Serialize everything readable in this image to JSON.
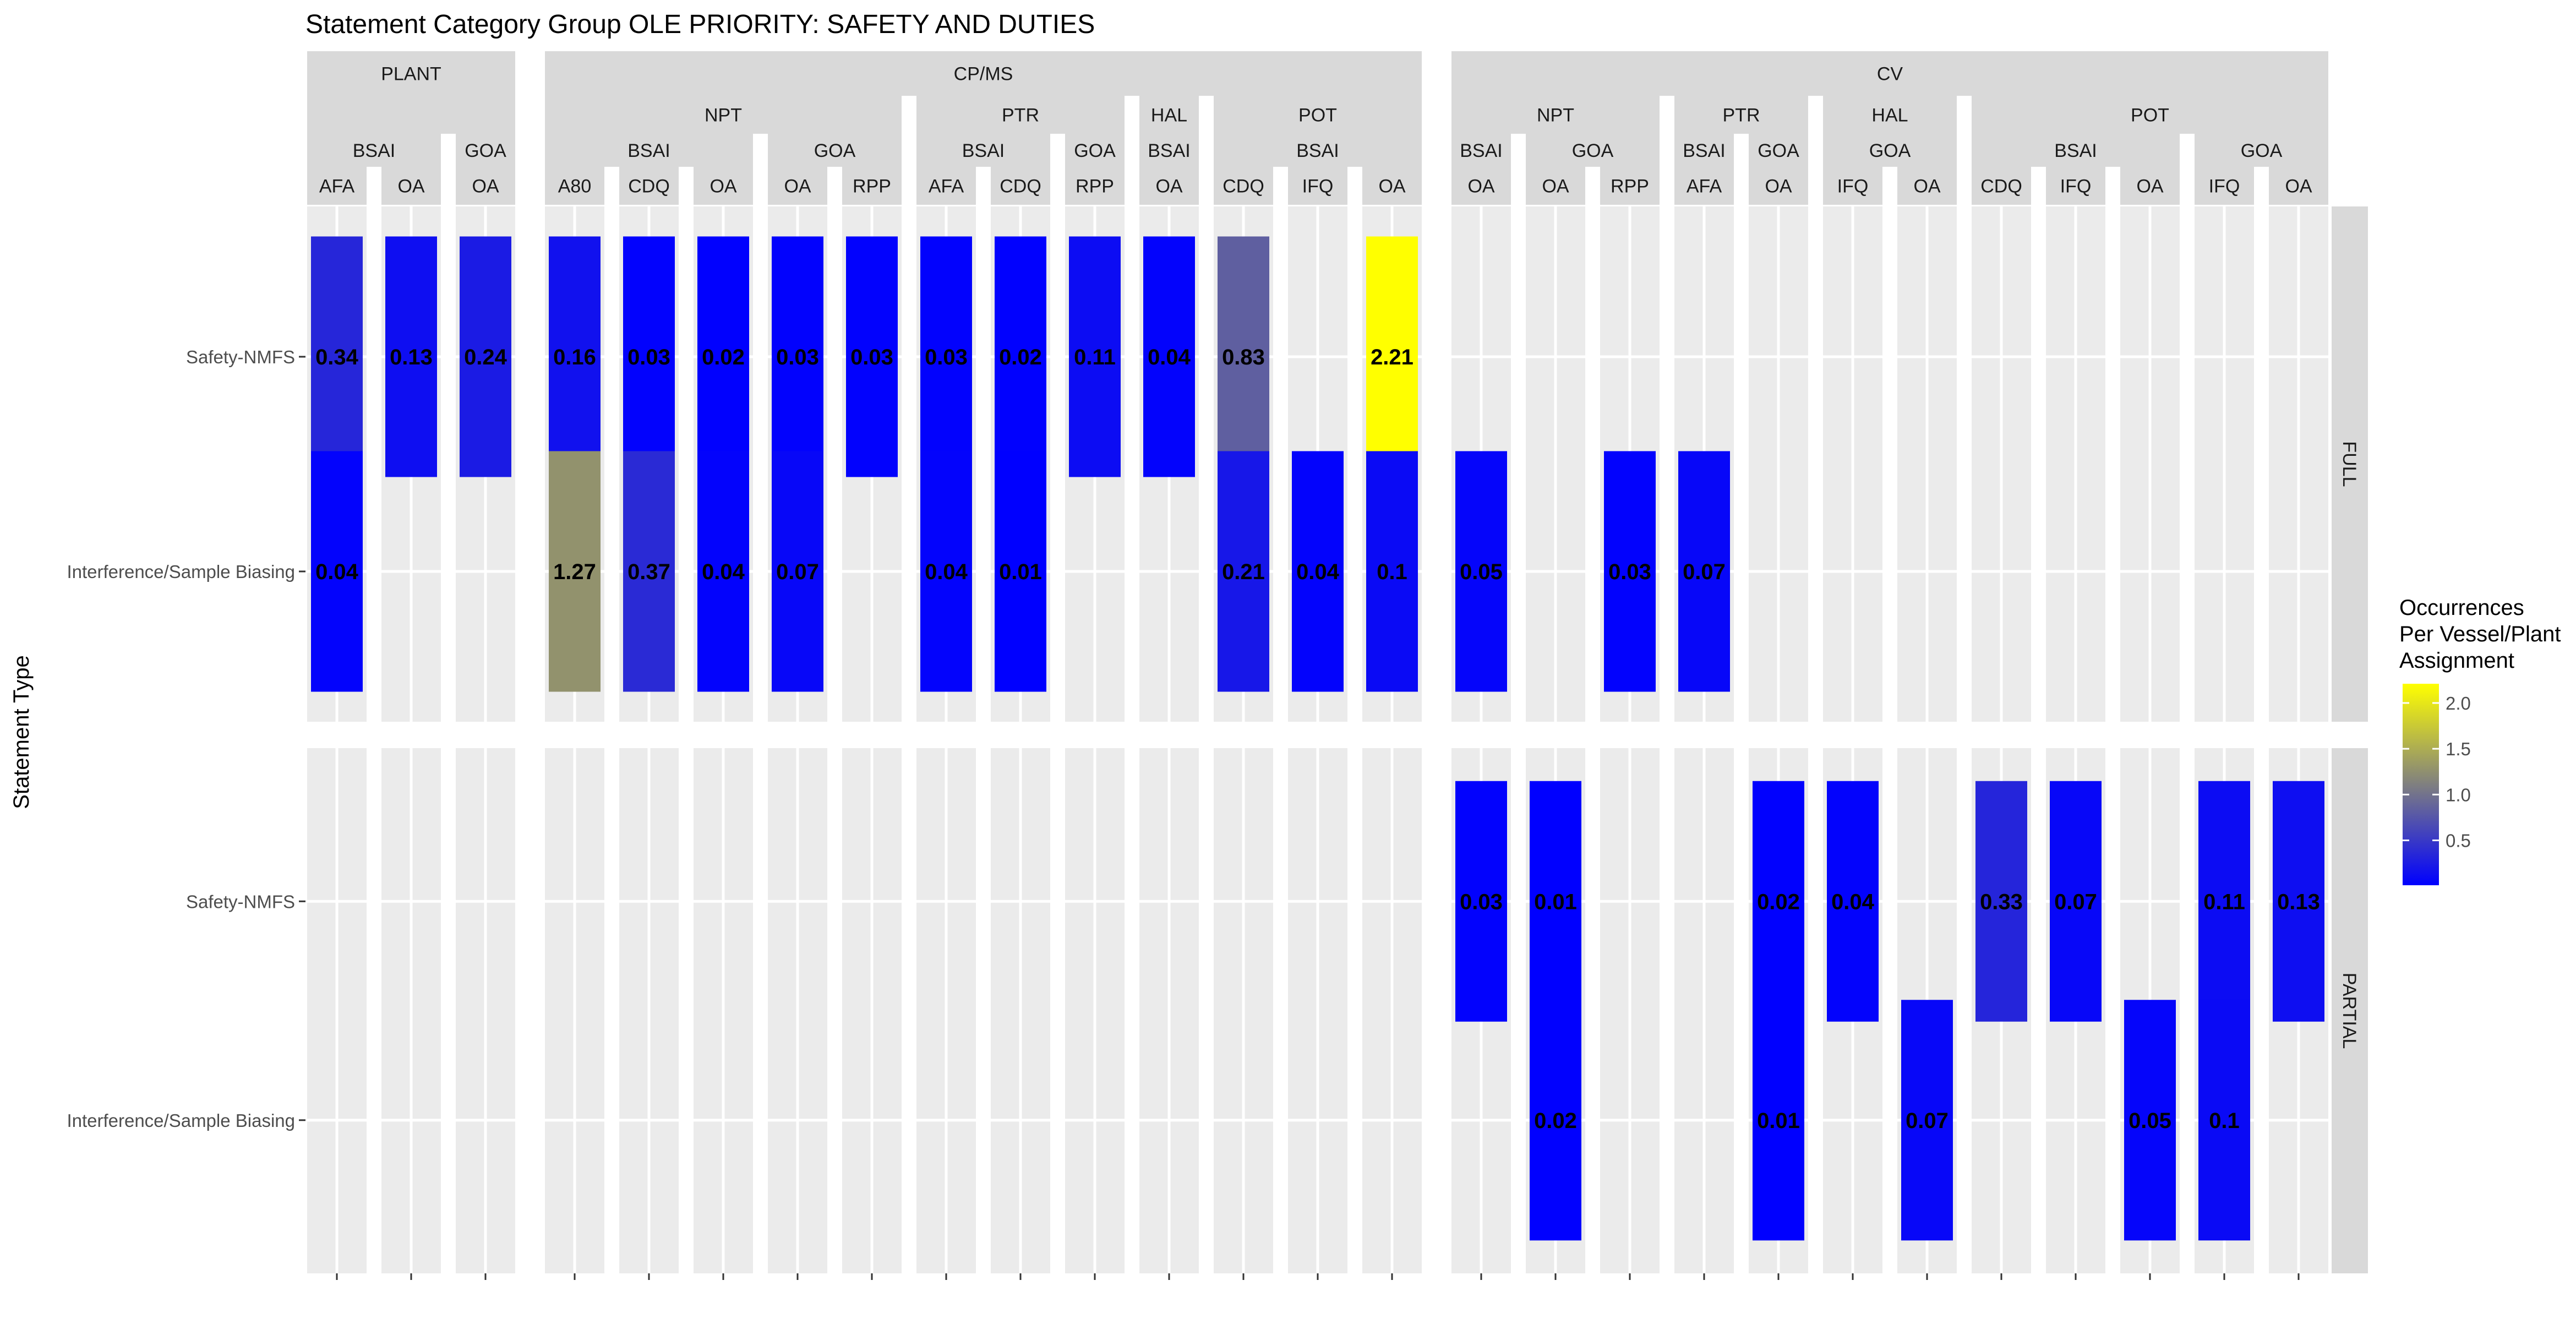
{
  "chart_data": {
    "type": "heatmap",
    "title": "Statement Category Group OLE PRIORITY: SAFETY AND DUTIES",
    "ylabel": "Statement Type",
    "xlabel": "",
    "row_facets": [
      "FULL",
      "PARTIAL"
    ],
    "y_categories": [
      "Safety-NMFS",
      "Interference/Sample Biasing"
    ],
    "columns": [
      {
        "l1": "PLANT",
        "l2": "",
        "l3": "BSAI",
        "l4": "AFA"
      },
      {
        "l1": "PLANT",
        "l2": "",
        "l3": "BSAI",
        "l4": "OA"
      },
      {
        "l1": "PLANT",
        "l2": "",
        "l3": "GOA",
        "l4": "OA"
      },
      {
        "l1": "CP/MS",
        "l2": "NPT",
        "l3": "BSAI",
        "l4": "A80"
      },
      {
        "l1": "CP/MS",
        "l2": "NPT",
        "l3": "BSAI",
        "l4": "CDQ"
      },
      {
        "l1": "CP/MS",
        "l2": "NPT",
        "l3": "BSAI",
        "l4": "OA"
      },
      {
        "l1": "CP/MS",
        "l2": "NPT",
        "l3": "GOA",
        "l4": "OA"
      },
      {
        "l1": "CP/MS",
        "l2": "NPT",
        "l3": "GOA",
        "l4": "RPP"
      },
      {
        "l1": "CP/MS",
        "l2": "PTR",
        "l3": "BSAI",
        "l4": "AFA"
      },
      {
        "l1": "CP/MS",
        "l2": "PTR",
        "l3": "BSAI",
        "l4": "CDQ"
      },
      {
        "l1": "CP/MS",
        "l2": "PTR",
        "l3": "GOA",
        "l4": "RPP"
      },
      {
        "l1": "CP/MS",
        "l2": "HAL",
        "l3": "BSAI",
        "l4": "OA"
      },
      {
        "l1": "CP/MS",
        "l2": "POT",
        "l3": "BSAI",
        "l4": "CDQ"
      },
      {
        "l1": "CP/MS",
        "l2": "POT",
        "l3": "BSAI",
        "l4": "IFQ"
      },
      {
        "l1": "CP/MS",
        "l2": "POT",
        "l3": "BSAI",
        "l4": "OA"
      },
      {
        "l1": "CV",
        "l2": "NPT",
        "l3": "BSAI",
        "l4": "OA"
      },
      {
        "l1": "CV",
        "l2": "NPT",
        "l3": "GOA",
        "l4": "OA"
      },
      {
        "l1": "CV",
        "l2": "NPT",
        "l3": "GOA",
        "l4": "RPP"
      },
      {
        "l1": "CV",
        "l2": "PTR",
        "l3": "BSAI",
        "l4": "AFA"
      },
      {
        "l1": "CV",
        "l2": "PTR",
        "l3": "GOA",
        "l4": "OA"
      },
      {
        "l1": "CV",
        "l2": "HAL",
        "l3": "GOA",
        "l4": "IFQ"
      },
      {
        "l1": "CV",
        "l2": "HAL",
        "l3": "GOA",
        "l4": "OA"
      },
      {
        "l1": "CV",
        "l2": "POT",
        "l3": "BSAI",
        "l4": "CDQ"
      },
      {
        "l1": "CV",
        "l2": "POT",
        "l3": "BSAI",
        "l4": "IFQ"
      },
      {
        "l1": "CV",
        "l2": "POT",
        "l3": "BSAI",
        "l4": "OA"
      },
      {
        "l1": "CV",
        "l2": "POT",
        "l3": "GOA",
        "l4": "IFQ"
      },
      {
        "l1": "CV",
        "l2": "POT",
        "l3": "GOA",
        "l4": "OA"
      }
    ],
    "cells": [
      {
        "facet": "FULL",
        "y": "Safety-NMFS",
        "col": 0,
        "value": 0.34
      },
      {
        "facet": "FULL",
        "y": "Safety-NMFS",
        "col": 1,
        "value": 0.13
      },
      {
        "facet": "FULL",
        "y": "Safety-NMFS",
        "col": 2,
        "value": 0.24
      },
      {
        "facet": "FULL",
        "y": "Safety-NMFS",
        "col": 3,
        "value": 0.16
      },
      {
        "facet": "FULL",
        "y": "Safety-NMFS",
        "col": 4,
        "value": 0.03
      },
      {
        "facet": "FULL",
        "y": "Safety-NMFS",
        "col": 5,
        "value": 0.02
      },
      {
        "facet": "FULL",
        "y": "Safety-NMFS",
        "col": 6,
        "value": 0.03
      },
      {
        "facet": "FULL",
        "y": "Safety-NMFS",
        "col": 7,
        "value": 0.03
      },
      {
        "facet": "FULL",
        "y": "Safety-NMFS",
        "col": 8,
        "value": 0.03
      },
      {
        "facet": "FULL",
        "y": "Safety-NMFS",
        "col": 9,
        "value": 0.02
      },
      {
        "facet": "FULL",
        "y": "Safety-NMFS",
        "col": 10,
        "value": 0.11
      },
      {
        "facet": "FULL",
        "y": "Safety-NMFS",
        "col": 11,
        "value": 0.04
      },
      {
        "facet": "FULL",
        "y": "Safety-NMFS",
        "col": 12,
        "value": 0.83
      },
      {
        "facet": "FULL",
        "y": "Safety-NMFS",
        "col": 14,
        "value": 2.21
      },
      {
        "facet": "FULL",
        "y": "Interference/Sample Biasing",
        "col": 0,
        "value": 0.04
      },
      {
        "facet": "FULL",
        "y": "Interference/Sample Biasing",
        "col": 3,
        "value": 1.27
      },
      {
        "facet": "FULL",
        "y": "Interference/Sample Biasing",
        "col": 4,
        "value": 0.37
      },
      {
        "facet": "FULL",
        "y": "Interference/Sample Biasing",
        "col": 5,
        "value": 0.04
      },
      {
        "facet": "FULL",
        "y": "Interference/Sample Biasing",
        "col": 6,
        "value": 0.07
      },
      {
        "facet": "FULL",
        "y": "Interference/Sample Biasing",
        "col": 8,
        "value": 0.04
      },
      {
        "facet": "FULL",
        "y": "Interference/Sample Biasing",
        "col": 9,
        "value": 0.01
      },
      {
        "facet": "FULL",
        "y": "Interference/Sample Biasing",
        "col": 12,
        "value": 0.21
      },
      {
        "facet": "FULL",
        "y": "Interference/Sample Biasing",
        "col": 13,
        "value": 0.04
      },
      {
        "facet": "FULL",
        "y": "Interference/Sample Biasing",
        "col": 14,
        "value": 0.1
      },
      {
        "facet": "FULL",
        "y": "Interference/Sample Biasing",
        "col": 15,
        "value": 0.05
      },
      {
        "facet": "FULL",
        "y": "Interference/Sample Biasing",
        "col": 17,
        "value": 0.03
      },
      {
        "facet": "FULL",
        "y": "Interference/Sample Biasing",
        "col": 18,
        "value": 0.07
      },
      {
        "facet": "PARTIAL",
        "y": "Safety-NMFS",
        "col": 15,
        "value": 0.03
      },
      {
        "facet": "PARTIAL",
        "y": "Safety-NMFS",
        "col": 16,
        "value": 0.01
      },
      {
        "facet": "PARTIAL",
        "y": "Safety-NMFS",
        "col": 19,
        "value": 0.02
      },
      {
        "facet": "PARTIAL",
        "y": "Safety-NMFS",
        "col": 20,
        "value": 0.04
      },
      {
        "facet": "PARTIAL",
        "y": "Safety-NMFS",
        "col": 22,
        "value": 0.33
      },
      {
        "facet": "PARTIAL",
        "y": "Safety-NMFS",
        "col": 23,
        "value": 0.07
      },
      {
        "facet": "PARTIAL",
        "y": "Safety-NMFS",
        "col": 25,
        "value": 0.11
      },
      {
        "facet": "PARTIAL",
        "y": "Safety-NMFS",
        "col": 26,
        "value": 0.13
      },
      {
        "facet": "PARTIAL",
        "y": "Interference/Sample Biasing",
        "col": 16,
        "value": 0.02
      },
      {
        "facet": "PARTIAL",
        "y": "Interference/Sample Biasing",
        "col": 19,
        "value": 0.01
      },
      {
        "facet": "PARTIAL",
        "y": "Interference/Sample Biasing",
        "col": 21,
        "value": 0.07
      },
      {
        "facet": "PARTIAL",
        "y": "Interference/Sample Biasing",
        "col": 24,
        "value": 0.05
      },
      {
        "facet": "PARTIAL",
        "y": "Interference/Sample Biasing",
        "col": 25,
        "value": 0.1
      }
    ],
    "legend": {
      "title_lines": [
        "Occurrences",
        "Per Vessel/Plant",
        "Assignment"
      ],
      "breaks": [
        0.5,
        1.0,
        1.5,
        2.0
      ],
      "break_labels": [
        "0.5",
        "1.0",
        "1.5",
        "2.0"
      ],
      "range": [
        0.01,
        2.21
      ],
      "colors": [
        "#0000ff",
        "#ffff00"
      ],
      "placement": "right"
    },
    "colors": {
      "panel_bg": "#ebebeb",
      "strip_bg": "#d9d9d9",
      "grid": "#ffffff",
      "text": "#1a1a1a",
      "axis_text": "#4d4d4d",
      "low": "#0000ff",
      "high": "#ffff00"
    }
  }
}
